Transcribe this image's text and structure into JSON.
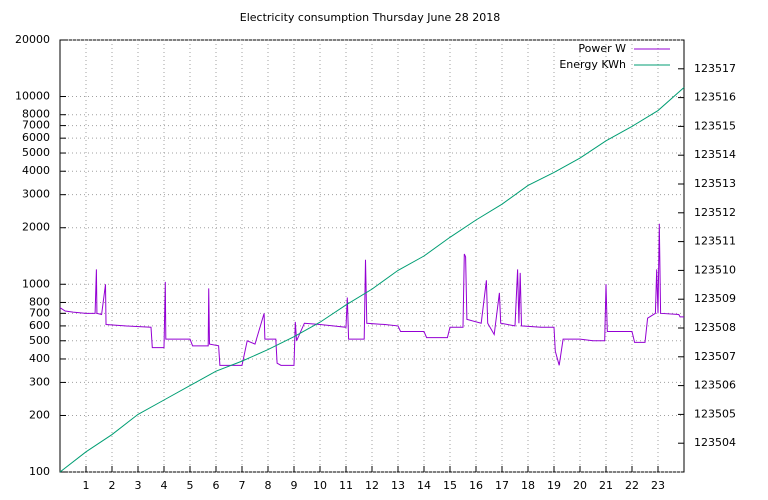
{
  "chart_data": {
    "type": "line",
    "title": "Electricity consumption Thursday June 28 2018",
    "xlim": [
      0,
      24
    ],
    "xticks": [
      1,
      2,
      3,
      4,
      5,
      6,
      7,
      8,
      9,
      10,
      11,
      12,
      13,
      14,
      15,
      16,
      17,
      18,
      19,
      20,
      21,
      22,
      23
    ],
    "ylim": [
      100,
      20000
    ],
    "log_y": true,
    "yticks": [
      100,
      200,
      300,
      400,
      500,
      600,
      700,
      800,
      1000,
      2000,
      3000,
      4000,
      5000,
      6000,
      7000,
      8000,
      10000,
      20000
    ],
    "y2lim": [
      123503,
      123518
    ],
    "y2ticks": [
      123504,
      123505,
      123506,
      123507,
      123508,
      123509,
      123510,
      123511,
      123512,
      123513,
      123514,
      123515,
      123516,
      123517
    ],
    "grid": true,
    "legend": "top-right",
    "series": [
      {
        "name": "Power W",
        "color": "#9400d3",
        "axis": "y",
        "x": [
          0.0,
          0.2,
          0.5,
          1.0,
          1.35,
          1.4,
          1.42,
          1.6,
          1.75,
          1.77,
          2.5,
          3.5,
          3.55,
          4.0,
          4.05,
          4.07,
          5.0,
          5.1,
          5.7,
          5.72,
          5.75,
          6.1,
          6.15,
          7.0,
          7.2,
          7.5,
          7.85,
          7.88,
          8.3,
          8.35,
          8.5,
          9.0,
          9.05,
          9.1,
          9.4,
          10.0,
          10.5,
          11.0,
          11.05,
          11.1,
          11.7,
          11.75,
          11.8,
          12.5,
          13.0,
          13.1,
          14.0,
          14.1,
          14.9,
          15.0,
          15.5,
          15.55,
          15.6,
          15.65,
          16.2,
          16.4,
          16.45,
          16.7,
          16.9,
          16.95,
          17.5,
          17.6,
          17.65,
          17.7,
          17.75,
          18.5,
          19.0,
          19.05,
          19.2,
          19.35,
          20.0,
          20.5,
          20.95,
          21.0,
          21.05,
          22.0,
          22.1,
          22.5,
          22.6,
          22.9,
          22.95,
          23.0,
          23.05,
          23.1,
          23.8,
          23.85,
          24.0
        ],
        "values": [
          750,
          720,
          710,
          700,
          700,
          1200,
          700,
          690,
          1000,
          610,
          600,
          590,
          460,
          460,
          1030,
          510,
          510,
          470,
          470,
          950,
          480,
          470,
          370,
          370,
          500,
          480,
          700,
          510,
          510,
          380,
          370,
          370,
          630,
          500,
          620,
          610,
          600,
          590,
          850,
          510,
          510,
          1350,
          620,
          610,
          600,
          560,
          560,
          520,
          520,
          590,
          590,
          1450,
          1400,
          650,
          620,
          1050,
          620,
          540,
          900,
          620,
          600,
          1200,
          620,
          1150,
          600,
          590,
          590,
          440,
          370,
          510,
          510,
          500,
          500,
          1000,
          560,
          560,
          490,
          490,
          660,
          700,
          1200,
          700,
          2100,
          700,
          690,
          670,
          670
        ]
      },
      {
        "name": "Energy KWh",
        "color": "#009e73",
        "axis": "y2",
        "x": [
          0,
          1,
          2,
          3,
          4,
          5,
          6,
          7,
          8,
          9,
          10,
          11,
          12,
          13,
          14,
          15,
          16,
          17,
          18,
          19,
          20,
          21,
          22,
          23,
          24
        ],
        "values": [
          123503.0,
          123503.7,
          123504.3,
          123505.0,
          123505.5,
          123506.0,
          123506.5,
          123506.85,
          123507.25,
          123507.7,
          123508.2,
          123508.8,
          123509.35,
          123510.0,
          123510.5,
          123511.15,
          123511.75,
          123512.3,
          123512.95,
          123513.4,
          123513.9,
          123514.5,
          123515.0,
          123515.55,
          123516.35
        ]
      }
    ]
  }
}
